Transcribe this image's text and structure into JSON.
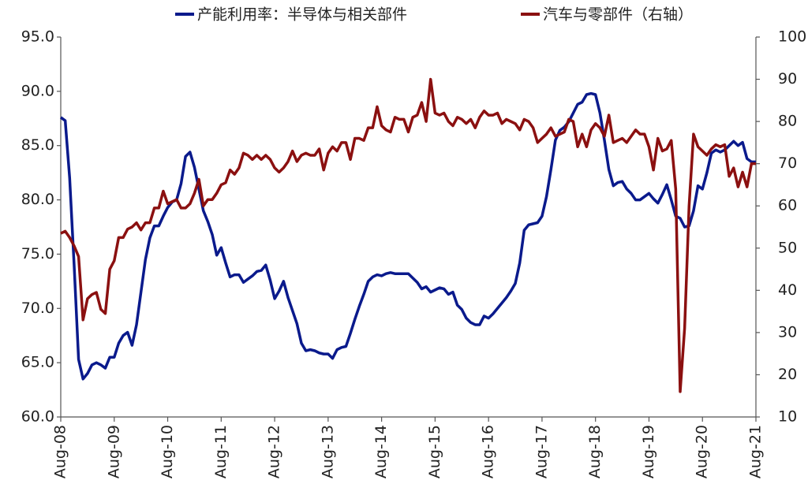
{
  "chart_data": {
    "type": "line",
    "categories": [
      "Aug-08",
      null,
      null,
      null,
      null,
      null,
      null,
      null,
      null,
      null,
      null,
      null,
      "Aug-09",
      null,
      null,
      null,
      null,
      null,
      null,
      null,
      null,
      null,
      null,
      null,
      "Aug-10",
      null,
      null,
      null,
      null,
      null,
      null,
      null,
      null,
      null,
      null,
      null,
      "Aug-11",
      null,
      null,
      null,
      null,
      null,
      null,
      null,
      null,
      null,
      null,
      null,
      "Aug-12",
      null,
      null,
      null,
      null,
      null,
      null,
      null,
      null,
      null,
      null,
      null,
      "Aug-13",
      null,
      null,
      null,
      null,
      null,
      null,
      null,
      null,
      null,
      null,
      null,
      "Aug-14",
      null,
      null,
      null,
      null,
      null,
      null,
      null,
      null,
      null,
      null,
      null,
      "Aug-15",
      null,
      null,
      null,
      null,
      null,
      null,
      null,
      null,
      null,
      null,
      null,
      "Aug-16",
      null,
      null,
      null,
      null,
      null,
      null,
      null,
      null,
      null,
      null,
      null,
      "Aug-17",
      null,
      null,
      null,
      null,
      null,
      null,
      null,
      null,
      null,
      null,
      null,
      "Aug-18",
      null,
      null,
      null,
      null,
      null,
      null,
      null,
      null,
      null,
      null,
      null,
      "Aug-19",
      null,
      null,
      null,
      null,
      null,
      null,
      null,
      null,
      null,
      null,
      null,
      "Aug-20",
      null,
      null,
      null,
      null,
      null,
      null,
      null,
      null,
      null,
      null,
      null,
      "Aug-21"
    ],
    "series": [
      {
        "name": "产能利用率：半导体与相关部件",
        "color": "#0a1a8c",
        "values": [
          87.6,
          87.3,
          82,
          74,
          65.3,
          63.5,
          64.0,
          64.8,
          65.0,
          64.8,
          64.5,
          65.5,
          65.5,
          66.8,
          67.5,
          67.8,
          66.6,
          68.5,
          71.5,
          74.5,
          76.5,
          77.6,
          77.6,
          78.5,
          79.3,
          79.8,
          80,
          81.5,
          84,
          84.4,
          83,
          81,
          79,
          78,
          76.8,
          74.9,
          75.6,
          74.2,
          72.9,
          73.1,
          73.1,
          72.4,
          72.7,
          73.0,
          73.4,
          73.5,
          74.0,
          72.6,
          70.9,
          71.6,
          72.5,
          71.0,
          69.8,
          68.6,
          66.8,
          66.1,
          66.2,
          66.1,
          65.9,
          65.8,
          65.8,
          65.4,
          66.2,
          66.4,
          66.5,
          67.7,
          69,
          70.2,
          71.3,
          72.5,
          72.9,
          73.1,
          73.0,
          73.2,
          73.3,
          73.2,
          73.2,
          73.2,
          73.2,
          72.8,
          72.4,
          71.8,
          72.0,
          71.5,
          71.7,
          71.9,
          71.8,
          71.3,
          71.5,
          70.3,
          69.9,
          69.1,
          68.7,
          68.5,
          68.5,
          69.3,
          69.1,
          69.5,
          70.0,
          70.5,
          71,
          71.6,
          72.3,
          74.2,
          77.2,
          77.7,
          77.8,
          77.9,
          78.5,
          80.3,
          82.8,
          85.5,
          86.4,
          86.7,
          87.2,
          88,
          88.8,
          89.0,
          89.7,
          89.8,
          89.7,
          88,
          85.5,
          82.8,
          81.3,
          81.6,
          81.7,
          81,
          80.6,
          80,
          80.0,
          80.3,
          80.6,
          80.1,
          79.7,
          80.5,
          81.4,
          80,
          78.5,
          78.3,
          77.5,
          77.6,
          79,
          81.3,
          81.0,
          82.5,
          84.3,
          84.6,
          84.4,
          84.6,
          85,
          85.4,
          85,
          85.3,
          83.8,
          83.5,
          83.5
        ]
      },
      {
        "name": "汽车与零部件（右轴）",
        "color": "#8b1010",
        "axis": "y2",
        "values": [
          53.5,
          54,
          52.5,
          50.5,
          48,
          33,
          38,
          39,
          39.5,
          35.5,
          34.5,
          45,
          47,
          52.5,
          52.5,
          54.5,
          55,
          56,
          54.3,
          56,
          56,
          59.5,
          59.5,
          63.5,
          60.5,
          61,
          61.5,
          59.5,
          59.5,
          60.5,
          63,
          66.3,
          60,
          61.5,
          61.5,
          63,
          65,
          65.5,
          68.5,
          67.5,
          69,
          72.5,
          72,
          71,
          72,
          71,
          72,
          71,
          69,
          68,
          69,
          70.5,
          73,
          70.5,
          72,
          72.5,
          72,
          72,
          73.5,
          68.5,
          72.5,
          74,
          73,
          75,
          75,
          71,
          76,
          76,
          75.5,
          78.5,
          78.5,
          83.5,
          79,
          78,
          77.5,
          81,
          80.5,
          80.5,
          77.5,
          81,
          81.5,
          84.5,
          80,
          90,
          82,
          81.5,
          82,
          80,
          79,
          81,
          80.5,
          79.5,
          80.5,
          78.5,
          81,
          82.5,
          81.5,
          81.5,
          82,
          79.5,
          80.5,
          80,
          79.5,
          78,
          80.5,
          80,
          78.5,
          75,
          76,
          77,
          78.5,
          76.5,
          77,
          77.5,
          80.5,
          80,
          74,
          77,
          74,
          78,
          79.5,
          78.5,
          76.5,
          81.5,
          75,
          75.5,
          76,
          75,
          76.5,
          78,
          77,
          77,
          74,
          68.5,
          76,
          73,
          73.5,
          75.5,
          64,
          16,
          31,
          60,
          77,
          74,
          73,
          72,
          73.5,
          74.5,
          74,
          74.5,
          67,
          69,
          64.5,
          68,
          64.5,
          70,
          70
        ]
      }
    ],
    "ylim": [
      60,
      95
    ],
    "yticks": [
      {
        "value": 60,
        "label": "60.0"
      },
      {
        "value": 65,
        "label": "65.0"
      },
      {
        "value": 70,
        "label": "70.0"
      },
      {
        "value": 75,
        "label": "75.0"
      },
      {
        "value": 80,
        "label": "80.0"
      },
      {
        "value": 85,
        "label": "85.0"
      },
      {
        "value": 90,
        "label": "90.0"
      },
      {
        "value": 95,
        "label": "95.0"
      }
    ],
    "y2lim": [
      10,
      100
    ],
    "y2ticks": [
      10,
      20,
      30,
      40,
      50,
      60,
      70,
      80,
      90,
      100
    ],
    "grid": false
  }
}
